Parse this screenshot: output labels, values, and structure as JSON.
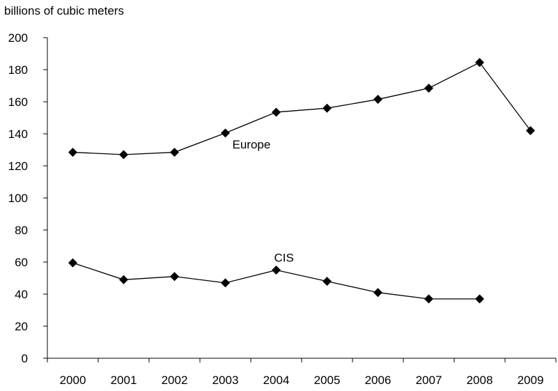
{
  "chart_data": {
    "type": "line",
    "ylabel": "billions of cubic meters",
    "xlabel": "",
    "categories": [
      "2000",
      "2001",
      "2002",
      "2003",
      "2004",
      "2005",
      "2006",
      "2007",
      "2008",
      "2009"
    ],
    "ylim": [
      0,
      200
    ],
    "yticks": [
      0,
      20,
      40,
      60,
      80,
      100,
      120,
      140,
      160,
      180,
      200
    ],
    "grid": false,
    "marker": "diamond",
    "series": [
      {
        "name": "Europe",
        "values": [
          128.5,
          127,
          128.5,
          140.5,
          153.5,
          156,
          161.5,
          168.5,
          184.5,
          142
        ],
        "label_at": "2003"
      },
      {
        "name": "CIS",
        "values": [
          59.5,
          49,
          51,
          47,
          55,
          48,
          41,
          37,
          37,
          null
        ],
        "label_at": "2004"
      }
    ]
  }
}
